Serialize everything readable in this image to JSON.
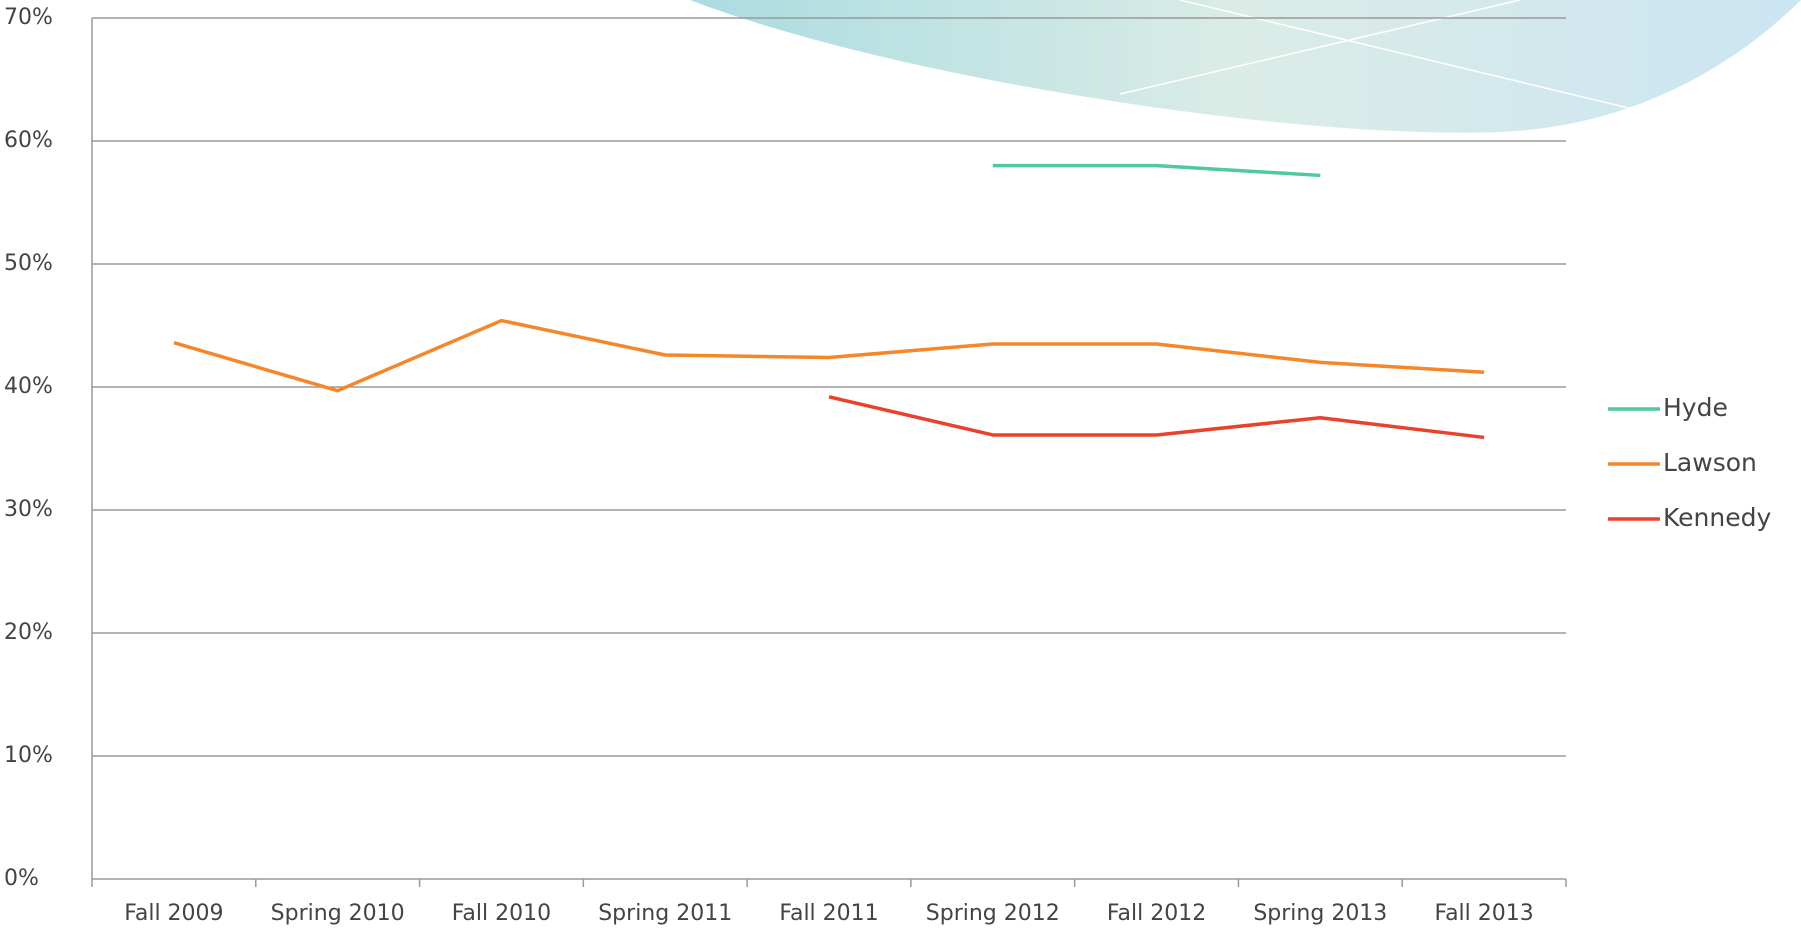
{
  "chart_data": {
    "type": "line",
    "categories": [
      "Fall 2009",
      "Spring 2010",
      "Fall 2010",
      "Spring 2011",
      "Fall 2011",
      "Spring 2012",
      "Fall 2012",
      "Spring 2013",
      "Fall 2013"
    ],
    "series": [
      {
        "name": "Hyde",
        "color": "#4fc9a0",
        "values": [
          null,
          null,
          null,
          null,
          null,
          58.0,
          58.0,
          57.2,
          null
        ]
      },
      {
        "name": "Lawson",
        "color": "#f5862a",
        "values": [
          43.6,
          39.7,
          45.4,
          42.6,
          42.4,
          43.5,
          43.5,
          42.0,
          41.2
        ]
      },
      {
        "name": "Kennedy",
        "color": "#e8412c",
        "values": [
          null,
          null,
          null,
          null,
          39.2,
          36.1,
          36.1,
          37.5,
          35.9
        ]
      }
    ],
    "ylim": [
      0,
      70
    ],
    "yticks": [
      {
        "value": 0,
        "label": "0%"
      },
      {
        "value": 10,
        "label": "10%"
      },
      {
        "value": 20,
        "label": "20%"
      },
      {
        "value": 30,
        "label": "30%"
      },
      {
        "value": 40,
        "label": "40%"
      },
      {
        "value": 50,
        "label": "50%"
      },
      {
        "value": 60,
        "label": "60%"
      },
      {
        "value": 70,
        "label": "70%"
      }
    ],
    "grid": true,
    "legend": "right"
  }
}
